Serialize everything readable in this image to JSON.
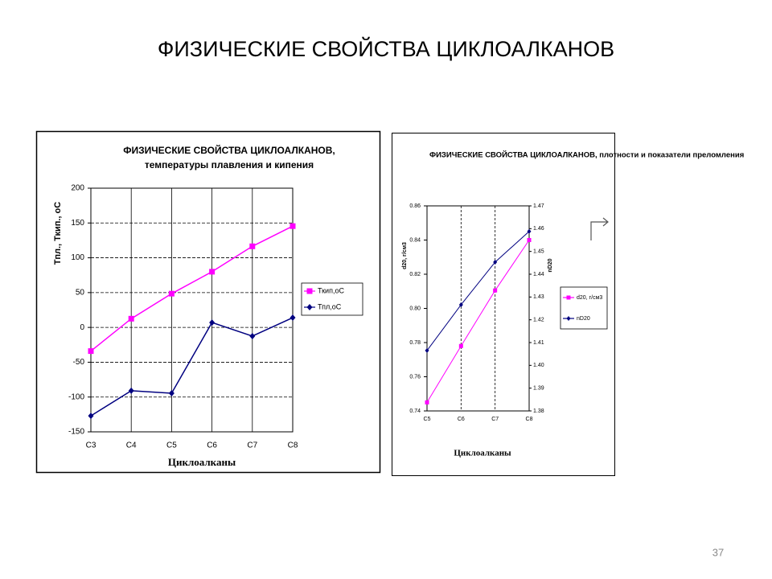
{
  "header": {
    "title": "ФИЗИЧЕСКИЕ СВОЙСТВА ЦИКЛОАЛКАНОВ"
  },
  "page_number": "37",
  "chart_data": [
    {
      "type": "line",
      "title": "ФИЗИЧЕСКИЕ СВОЙСТВА ЦИКЛОАЛКАНОВ,",
      "subtitle": "температуры плавления и кипения",
      "y_label": "Тпл., Ткип., oC",
      "x_label": "Циклоалканы",
      "categories": [
        "C3",
        "C4",
        "C5",
        "C6",
        "C7",
        "C8"
      ],
      "ylim": [
        -150,
        200
      ],
      "yticks": [
        -150,
        -100,
        -50,
        0,
        50,
        100,
        150,
        200
      ],
      "grid": {
        "x": true,
        "y": true
      },
      "series": [
        {
          "name": "Ткип,oC",
          "color": "#ff00ff",
          "marker": "square",
          "values": [
            -34,
            12.5,
            48.5,
            80,
            116.5,
            145.5
          ]
        },
        {
          "name": "Тпл,oC",
          "color": "#000080",
          "marker": "diamond",
          "values": [
            -127,
            -91,
            -94.5,
            7,
            -12.5,
            14
          ]
        }
      ]
    },
    {
      "type": "line",
      "title": "ФИЗИЧЕСКИЕ СВОЙСТВА ЦИКЛОАЛКАНОВ, плотности и показатели преломления",
      "y_label": "d20, г/см3",
      "y2_label": "nD20",
      "x_label": "Циклоалканы",
      "categories": [
        "C5",
        "C6",
        "C7",
        "C8"
      ],
      "ylim": [
        0.74,
        0.86
      ],
      "yticks": [
        0.74,
        0.76,
        0.78,
        {
          "value": 0.8,
          "label": "0.80"
        },
        0.82,
        0.84,
        0.86
      ],
      "y2lim": [
        1.38,
        1.47
      ],
      "y2ticks": [
        1.38,
        1.39,
        {
          "value": 1.4,
          "label": "1.40"
        },
        1.41,
        1.42,
        1.43,
        1.44,
        1.45,
        1.46,
        1.47
      ],
      "grid": {
        "x": true,
        "y": false
      },
      "series": [
        {
          "name": "d20, г/см3",
          "color": "#ff00ff",
          "marker": "square",
          "values": [
            0.745,
            0.778,
            0.8105,
            0.84
          ]
        },
        {
          "name": "nD20",
          "color": "#000080",
          "marker": "diamond",
          "axis": "y2",
          "values": [
            1.4065,
            1.4266,
            1.4453,
            1.4588
          ]
        }
      ]
    }
  ]
}
